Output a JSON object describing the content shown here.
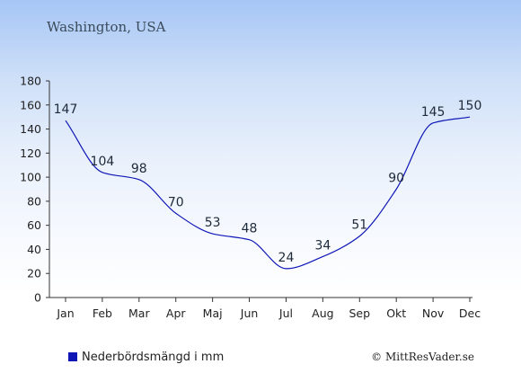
{
  "chart_data": {
    "type": "line",
    "title": "Washington, USA",
    "categories": [
      "Jan",
      "Feb",
      "Mar",
      "Apr",
      "Maj",
      "Jun",
      "Jul",
      "Aug",
      "Sep",
      "Okt",
      "Nov",
      "Dec"
    ],
    "series": [
      {
        "name": "Nederbördsmängd i mm",
        "values": [
          147,
          104,
          98,
          70,
          53,
          48,
          24,
          34,
          51,
          90,
          145,
          150
        ],
        "color": "#0e16b6"
      }
    ],
    "ylim": [
      0,
      180
    ],
    "yticks": [
      0,
      20,
      40,
      60,
      80,
      100,
      120,
      140,
      160,
      180
    ],
    "grid": false,
    "legend_position": "bottom-left"
  },
  "credit": "© MittResVader.se",
  "colors": {
    "line": "#0e16b6",
    "legend_swatch": "#0e16b6",
    "text": "#222222"
  }
}
